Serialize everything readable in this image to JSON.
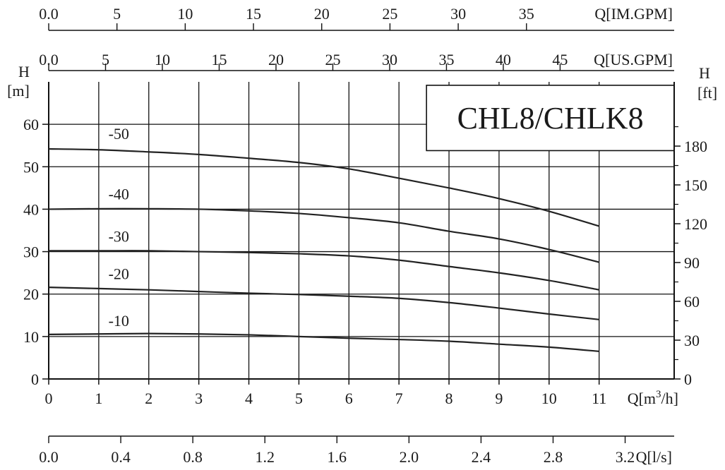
{
  "chart_data": {
    "type": "line",
    "title": "CHL8/CHLK8",
    "xlabel": "Q[m³/h]",
    "xlabel_main": "Q[m",
    "xlabel_sup": "3",
    "xlabel_tail": "/h]",
    "ylabel_left": [
      "H",
      "[m]"
    ],
    "ylabel_right": [
      "H",
      "[ft]"
    ],
    "xlim": [
      0,
      12.5
    ],
    "ylim": [
      0,
      70
    ],
    "grid": true,
    "x_ticks": [
      "0",
      "1",
      "2",
      "3",
      "4",
      "5",
      "6",
      "7",
      "8",
      "9",
      "10",
      "11"
    ],
    "y_ticks_left": [
      "0",
      "10",
      "20",
      "30",
      "40",
      "50",
      "60"
    ],
    "y_ticks_right": [
      "0",
      "30",
      "60",
      "90",
      "120",
      "150",
      "180"
    ],
    "secondary_axes": {
      "im_gpm": {
        "label": "Q[IM.GPM]",
        "ticks": [
          "0.0",
          "5",
          "10",
          "15",
          "20",
          "25",
          "30",
          "35"
        ],
        "values": [
          0,
          5,
          10,
          15,
          20,
          25,
          30,
          35
        ],
        "m3h_per_unit": 0.2728
      },
      "us_gpm": {
        "label": "Q[US.GPM]",
        "ticks": [
          "0.0",
          "5",
          "10",
          "15",
          "20",
          "25",
          "30",
          "35",
          "40",
          "45"
        ],
        "values": [
          0,
          5,
          10,
          15,
          20,
          25,
          30,
          35,
          40,
          45
        ],
        "m3h_per_unit": 0.22712
      },
      "ls": {
        "label": "Q[l/s]",
        "ticks": [
          "0.0",
          "0.4",
          "0.8",
          "1.2",
          "1.6",
          "2.0",
          "2.4",
          "2.8",
          "3.2"
        ],
        "values": [
          0,
          0.4,
          0.8,
          1.2,
          1.6,
          2.0,
          2.4,
          2.8,
          3.2
        ],
        "m3h_per_unit": 3.6
      }
    },
    "x": [
      0,
      1,
      2,
      3,
      4,
      5,
      6,
      7,
      8,
      9,
      10,
      11
    ],
    "series": [
      {
        "name": "-50",
        "label_at": [
          1.4,
          56.5
        ],
        "values": [
          54.2,
          54.0,
          53.5,
          52.9,
          52.0,
          51.0,
          49.5,
          47.3,
          45.0,
          42.5,
          39.5,
          36.0
        ]
      },
      {
        "name": "-40",
        "label_at": [
          1.4,
          42.3
        ],
        "values": [
          40.0,
          40.1,
          40.1,
          40.0,
          39.6,
          39.0,
          38.0,
          36.8,
          34.8,
          33.0,
          30.5,
          27.5
        ]
      },
      {
        "name": "-30",
        "label_at": [
          1.4,
          32.3
        ],
        "values": [
          30.2,
          30.2,
          30.2,
          30.0,
          29.8,
          29.5,
          29.0,
          28.0,
          26.5,
          25.0,
          23.2,
          21.0
        ]
      },
      {
        "name": "-20",
        "label_at": [
          1.4,
          23.5
        ],
        "values": [
          21.6,
          21.3,
          21.0,
          20.6,
          20.2,
          19.9,
          19.5,
          19.0,
          18.0,
          16.7,
          15.3,
          14.0
        ]
      },
      {
        "name": "-10",
        "label_at": [
          1.4,
          12.5
        ],
        "values": [
          10.5,
          10.6,
          10.7,
          10.6,
          10.4,
          10.0,
          9.6,
          9.3,
          8.9,
          8.2,
          7.5,
          6.5
        ]
      }
    ],
    "line_color": "#222222",
    "grid_color": "#111111"
  }
}
